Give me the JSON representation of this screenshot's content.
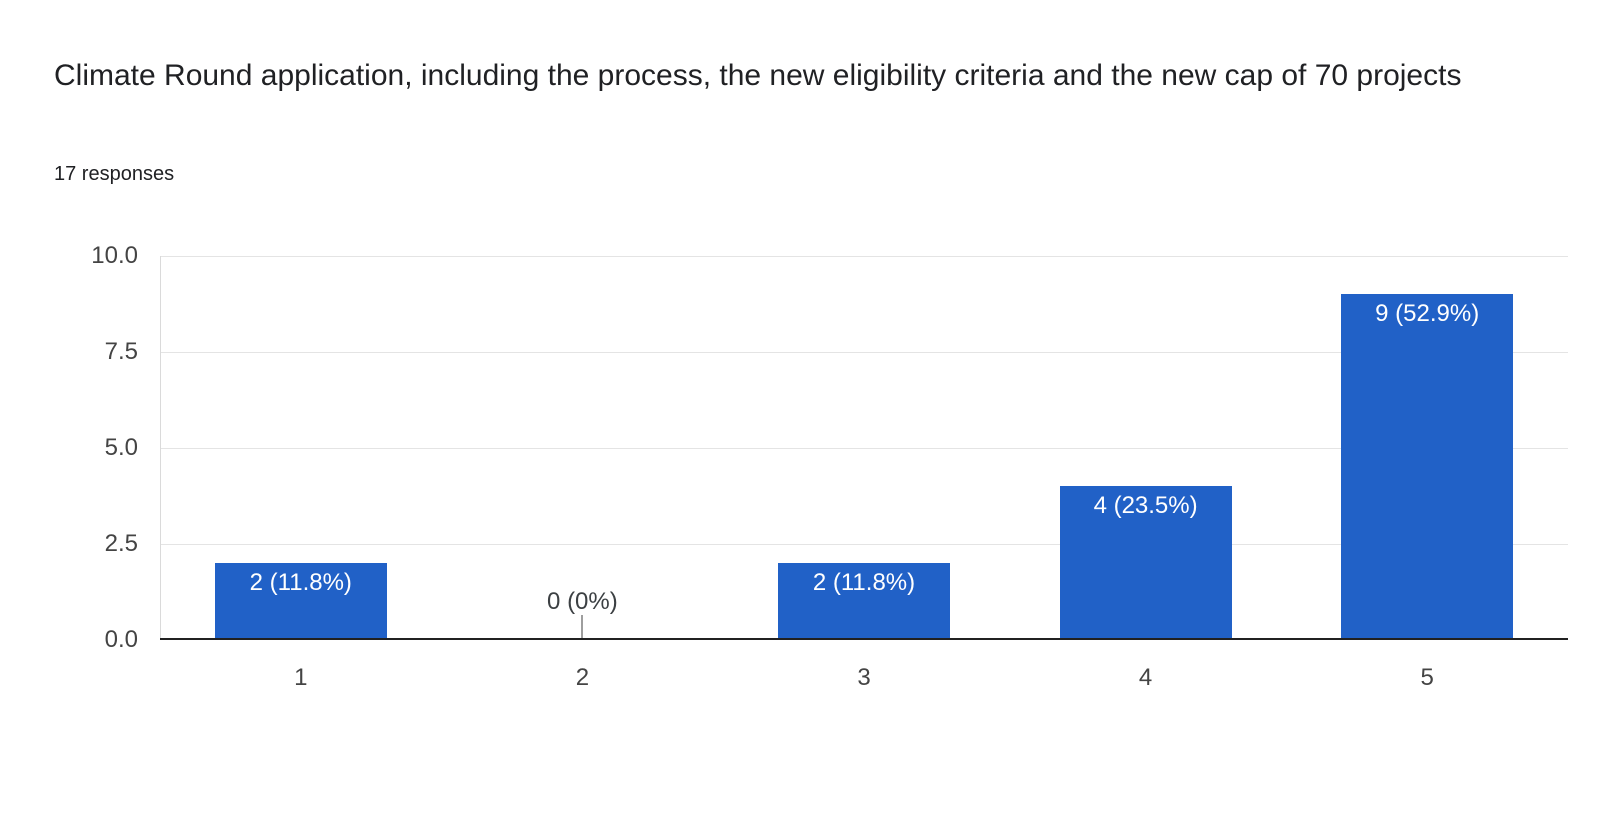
{
  "header": {
    "title": "Climate Round application, including the process, the new eligibility criteria and the new cap of 70 projects",
    "subtitle": "17 responses"
  },
  "chart_data": {
    "type": "bar",
    "title": "Climate Round application, including the process, the new eligibility criteria and the new cap of 70 projects",
    "subtitle": "17 responses",
    "categories": [
      "1",
      "2",
      "3",
      "4",
      "5"
    ],
    "values": [
      2,
      0,
      2,
      4,
      9
    ],
    "percents": [
      11.8,
      0,
      11.8,
      23.5,
      52.9
    ],
    "bar_labels": [
      "2 (11.8%)",
      "0 (0%)",
      "2 (11.8%)",
      "4 (23.5%)",
      "9 (52.9%)"
    ],
    "xlabel": "",
    "ylabel": "",
    "ylim": [
      0,
      10
    ],
    "yticks": [
      0,
      2.5,
      5,
      7.5,
      10
    ],
    "ytick_labels": [
      "0.0",
      "2.5",
      "5.0",
      "7.5",
      "10.0"
    ],
    "grid": true,
    "legend": "none",
    "colors": {
      "bar": "#2161c7",
      "bar_label_text": "#ffffff",
      "zero_label_text": "#3c4043",
      "axis_text": "#444444",
      "gridline": "#e4e4e4",
      "plot_left_border": "#dadada",
      "baseline": "#212121",
      "zero_stub": "#9e9e9e",
      "title_text": "#202124",
      "background": "#ffffff"
    }
  }
}
